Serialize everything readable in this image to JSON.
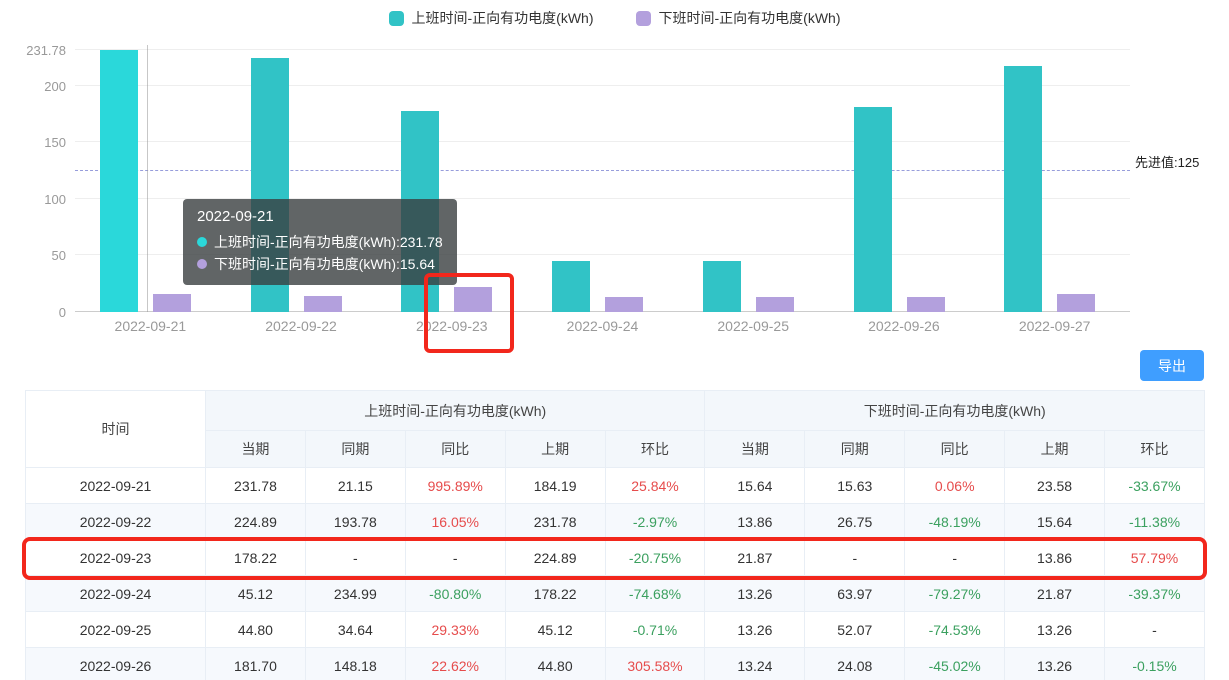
{
  "chart_data": {
    "type": "bar",
    "categories": [
      "2022-09-21",
      "2022-09-22",
      "2022-09-23",
      "2022-09-24",
      "2022-09-25",
      "2022-09-26",
      "2022-09-27"
    ],
    "series": [
      {
        "name": "上班时间-正向有功电度(kWh)",
        "color": "#31c3c6",
        "emphasis_color": "#2ad8da",
        "emphasis_index": 0,
        "values": [
          231.78,
          224.89,
          178.22,
          45.12,
          44.8,
          181.7,
          218.0
        ]
      },
      {
        "name": "下班时间-正向有功电度(kWh)",
        "color": "#b3a0dd",
        "values": [
          15.64,
          13.86,
          21.87,
          13.26,
          13.26,
          13.24,
          15.5
        ]
      }
    ],
    "yticks": [
      "0",
      "50",
      "100",
      "150",
      "200",
      "231.78"
    ],
    "ytick_values": [
      0,
      50,
      100,
      150,
      200,
      231.78
    ],
    "ylim": [
      0,
      231.78
    ],
    "reference_line": {
      "value": 125,
      "label": "先进值:125"
    },
    "legend_position": "top",
    "grid": true
  },
  "tooltip": {
    "title": "2022-09-21",
    "items": [
      {
        "label": "上班时间-正向有功电度(kWh)",
        "value": "231.78",
        "color": "#2ad8da"
      },
      {
        "label": "下班时间-正向有功电度(kWh)",
        "value": "15.64",
        "color": "#b3a0dd"
      }
    ]
  },
  "export_button": "导出",
  "table": {
    "time_header": "时间",
    "groups": [
      "上班时间-正向有功电度(kWh)",
      "下班时间-正向有功电度(kWh)"
    ],
    "subcols": [
      "当期",
      "同期",
      "同比",
      "上期",
      "环比"
    ],
    "rows": [
      {
        "time": "2022-09-21",
        "cells": [
          "231.78",
          "21.15",
          "995.89%",
          "184.19",
          "25.84%",
          "15.64",
          "15.63",
          "0.06%",
          "23.58",
          "-33.67%"
        ]
      },
      {
        "time": "2022-09-22",
        "cells": [
          "224.89",
          "193.78",
          "16.05%",
          "231.78",
          "-2.97%",
          "13.86",
          "26.75",
          "-48.19%",
          "15.64",
          "-11.38%"
        ]
      },
      {
        "time": "2022-09-23",
        "cells": [
          "178.22",
          "-",
          "-",
          "224.89",
          "-20.75%",
          "21.87",
          "-",
          "-",
          "13.86",
          "57.79%"
        ]
      },
      {
        "time": "2022-09-24",
        "cells": [
          "45.12",
          "234.99",
          "-80.80%",
          "178.22",
          "-74.68%",
          "13.26",
          "63.97",
          "-79.27%",
          "21.87",
          "-39.37%"
        ]
      },
      {
        "time": "2022-09-25",
        "cells": [
          "44.80",
          "34.64",
          "29.33%",
          "45.12",
          "-0.71%",
          "13.26",
          "52.07",
          "-74.53%",
          "13.26",
          "-"
        ]
      },
      {
        "time": "2022-09-26",
        "cells": [
          "181.70",
          "148.18",
          "22.62%",
          "44.80",
          "305.58%",
          "13.24",
          "24.08",
          "-45.02%",
          "13.26",
          "-0.15%"
        ]
      }
    ],
    "highlighted_row": "2022-09-23"
  }
}
